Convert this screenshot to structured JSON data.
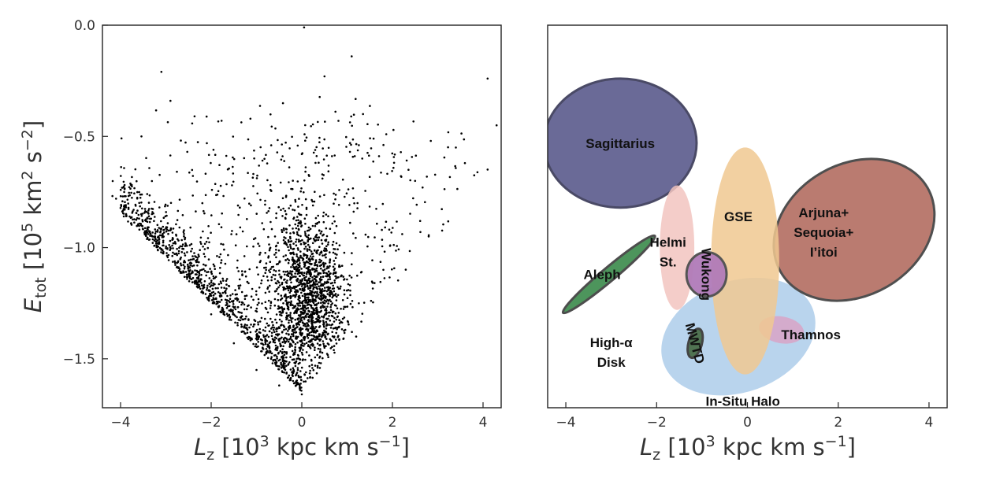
{
  "chart_data": [
    {
      "type": "scatter",
      "title": "",
      "xlabel": "L_z [10^3 kpc km s^-1]",
      "ylabel": "E_tot [10^5 km^2 s^-2]",
      "xlim": [
        -4.4,
        4.4
      ],
      "ylim": [
        -1.72,
        0.0
      ],
      "xticks": [
        -4,
        -2,
        0,
        2,
        4
      ],
      "yticks": [
        0.0,
        -0.5,
        -1.0,
        -1.5
      ],
      "xtick_labels": [
        "−4",
        "−2",
        "0",
        "2",
        "4"
      ],
      "ytick_labels": [
        "0.0",
        "−0.5",
        "−1.0",
        "−1.5"
      ],
      "point_color": "#000000",
      "approx_point_count": 3500,
      "distribution": "dense V-shaped cloud of stars: sharp lower-left envelope from (-4.0,-0.85) down to (0.0,-1.65), concentrated core near L_z 0 to 0.5 between E -1.0 and -1.5, sparse halo stars spreading up toward E -0.2",
      "sample_points": [
        {
          "x": -4.1,
          "y": -0.78
        },
        {
          "x": -3.8,
          "y": -0.86
        },
        {
          "x": -3.3,
          "y": -0.95
        },
        {
          "x": -3.1,
          "y": -0.21
        },
        {
          "x": -2.9,
          "y": -0.34
        },
        {
          "x": -2.5,
          "y": -1.12
        },
        {
          "x": -2.0,
          "y": -1.3
        },
        {
          "x": -1.5,
          "y": -1.43
        },
        {
          "x": -1.0,
          "y": -1.55
        },
        {
          "x": -0.5,
          "y": -1.62
        },
        {
          "x": 0.0,
          "y": -1.66
        },
        {
          "x": 0.05,
          "y": -0.01
        },
        {
          "x": 0.2,
          "y": -1.3
        },
        {
          "x": 0.5,
          "y": -1.45
        },
        {
          "x": 0.5,
          "y": -0.23
        },
        {
          "x": 1.1,
          "y": -0.14
        },
        {
          "x": 1.2,
          "y": -1.4
        },
        {
          "x": 1.8,
          "y": -1.1
        },
        {
          "x": 2.5,
          "y": -0.7
        },
        {
          "x": 2.8,
          "y": -0.95
        },
        {
          "x": 3.4,
          "y": -0.55
        },
        {
          "x": 3.6,
          "y": -0.62
        },
        {
          "x": 4.1,
          "y": -0.24
        },
        {
          "x": 4.3,
          "y": -0.45
        }
      ]
    },
    {
      "type": "diagram",
      "title": "",
      "xlabel": "L_z [10^3 kpc km s^-1]",
      "ylabel": "",
      "xlim": [
        -4.4,
        4.4
      ],
      "ylim": [
        -1.72,
        0.0
      ],
      "xticks": [
        -4,
        -2,
        0,
        2,
        4
      ],
      "xtick_labels": [
        "−4",
        "−2",
        "0",
        "2",
        "4"
      ],
      "regions": [
        {
          "name": "Sagittarius",
          "lines": [
            "Sagittarius"
          ],
          "center": [
            -2.8,
            -0.53
          ],
          "semi_axes": [
            1.68,
            0.29
          ],
          "angle_deg": 0,
          "fill": "#5a5a8c",
          "opacity": 0.9,
          "stroke": "#4a4a66"
        },
        {
          "name": "In-Situ Halo",
          "lines": [
            "In-Situ Halo"
          ],
          "center": [
            -0.2,
            -1.4
          ],
          "semi_axes": [
            1.75,
            0.25
          ],
          "angle_deg": 20,
          "fill": "#a8c9e8",
          "opacity": 0.8,
          "stroke": "none"
        },
        {
          "name": "Thamnos",
          "lines": [
            "Thamnos"
          ],
          "center": [
            0.75,
            -1.37
          ],
          "semi_axes": [
            0.5,
            0.06
          ],
          "angle_deg": -10,
          "fill": "#d7a6c8",
          "opacity": 0.9,
          "stroke": "none"
        },
        {
          "name": "Arjuna+Sequoia+I'itoi",
          "lines": [
            "Arjuna+",
            "Sequoia+",
            "I’itoi"
          ],
          "center": [
            2.35,
            -0.92
          ],
          "semi_axes": [
            1.45,
            0.38
          ],
          "angle_deg": -60,
          "fill": "#b0695c",
          "opacity": 0.88,
          "stroke": "#4f4f4f"
        },
        {
          "name": "GSE",
          "lines": [
            "GSE"
          ],
          "center": [
            -0.05,
            -1.06
          ],
          "semi_axes": [
            0.75,
            0.51
          ],
          "angle_deg": 0,
          "fill": "#f0c890",
          "opacity": 0.85,
          "stroke": "none"
        },
        {
          "name": "Helmi St.",
          "lines": [
            "Helmi",
            "St."
          ],
          "center": [
            -1.55,
            -1.0
          ],
          "semi_axes": [
            0.38,
            0.28
          ],
          "angle_deg": 0,
          "fill": "#f2c4c0",
          "opacity": 0.85,
          "stroke": "none"
        },
        {
          "name": "Aleph",
          "lines": [
            "Aleph"
          ],
          "center": [
            -3.05,
            -1.12
          ],
          "semi_axes": [
            1.32,
            0.03
          ],
          "angle_deg": 40,
          "fill": "#3a8a4a",
          "opacity": 0.9,
          "stroke": "#4d4d4d"
        },
        {
          "name": "MWTD",
          "lines": [
            "MWTD"
          ],
          "center": [
            -1.15,
            -1.43
          ],
          "semi_axes": [
            0.33,
            0.03
          ],
          "angle_deg": 75,
          "fill": "#4a6e4a",
          "opacity": 0.95,
          "stroke": "#444444"
        },
        {
          "name": "Wukong",
          "lines": [
            "Wukong"
          ],
          "center": [
            -0.9,
            -1.12
          ],
          "semi_axes": [
            0.49,
            0.09
          ],
          "angle_deg": 88,
          "fill": "#b07ab8",
          "opacity": 0.95,
          "stroke": "#555555"
        }
      ],
      "free_labels": [
        {
          "region": "High-α Disk",
          "lines": [
            "High-α",
            "Disk"
          ],
          "at": [
            -3.0,
            -1.47
          ]
        }
      ],
      "label_positions": {
        "Sagittarius": [
          -2.8,
          -0.53
        ],
        "In-Situ Halo": [
          -0.1,
          -1.69
        ],
        "Thamnos": [
          1.4,
          -1.39
        ],
        "Arjuna+Sequoia+I'itoi": [
          1.68,
          -0.93
        ],
        "GSE": [
          -0.2,
          -0.86
        ],
        "Helmi St.": [
          -1.75,
          -1.02
        ],
        "Aleph": [
          -3.2,
          -1.12
        ],
        "MWTD": [
          -1.15,
          -1.43
        ],
        "Wukong": [
          -0.9,
          -1.12
        ]
      }
    }
  ]
}
